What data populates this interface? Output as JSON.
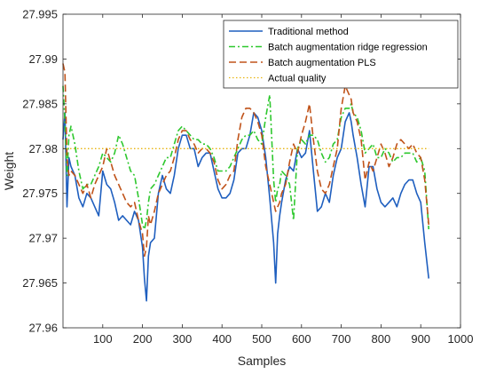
{
  "chart_data": {
    "type": "line",
    "title": "",
    "xlabel": "Samples",
    "ylabel": "Weight",
    "xlim": [
      0,
      1000
    ],
    "ylim": [
      27.96,
      27.995
    ],
    "xticks": [
      100,
      200,
      300,
      400,
      500,
      600,
      700,
      800,
      900,
      1000
    ],
    "xtick_labels": [
      "100",
      "200",
      "300",
      "400",
      "500",
      "600",
      "700",
      "800",
      "900",
      "1000"
    ],
    "yticks": [
      27.96,
      27.965,
      27.97,
      27.975,
      27.98,
      27.985,
      27.99,
      27.995
    ],
    "ytick_labels": [
      "27.96",
      "27.965",
      "27.97",
      "27.975",
      "27.98",
      "27.985",
      "27.99",
      "27.995"
    ],
    "grid": false,
    "legend_position": "top-right",
    "series": [
      {
        "name": "Traditional method",
        "color": "#1f5fbf",
        "style": "solid",
        "x": [
          0,
          5,
          10,
          15,
          20,
          30,
          40,
          50,
          60,
          70,
          80,
          90,
          100,
          110,
          120,
          130,
          140,
          150,
          160,
          170,
          180,
          190,
          200,
          205,
          210,
          215,
          220,
          230,
          240,
          250,
          260,
          270,
          280,
          290,
          300,
          310,
          320,
          330,
          340,
          350,
          360,
          370,
          380,
          390,
          400,
          410,
          420,
          430,
          440,
          450,
          460,
          470,
          480,
          490,
          500,
          510,
          520,
          530,
          535,
          540,
          545,
          550,
          560,
          570,
          580,
          590,
          600,
          610,
          620,
          630,
          640,
          650,
          660,
          670,
          680,
          690,
          700,
          710,
          720,
          725,
          730,
          740,
          750,
          760,
          770,
          780,
          790,
          800,
          810,
          820,
          830,
          840,
          850,
          860,
          870,
          880,
          890,
          900,
          910,
          920
        ],
        "y": [
          27.981,
          27.984,
          27.9735,
          27.979,
          27.978,
          27.977,
          27.9745,
          27.9735,
          27.975,
          27.9745,
          27.9735,
          27.9725,
          27.9775,
          27.976,
          27.9755,
          27.974,
          27.972,
          27.9725,
          27.972,
          27.9715,
          27.973,
          27.972,
          27.969,
          27.9655,
          27.963,
          27.968,
          27.9695,
          27.97,
          27.975,
          27.977,
          27.9755,
          27.975,
          27.977,
          27.98,
          27.9815,
          27.9815,
          27.98,
          27.98,
          27.978,
          27.979,
          27.9795,
          27.9795,
          27.9775,
          27.9755,
          27.9745,
          27.9745,
          27.975,
          27.9765,
          27.9795,
          27.98,
          27.98,
          27.9815,
          27.984,
          27.9835,
          27.982,
          27.979,
          27.9745,
          27.9695,
          27.965,
          27.9705,
          27.9725,
          27.974,
          27.9765,
          27.978,
          27.9775,
          27.98,
          27.979,
          27.9795,
          27.982,
          27.9775,
          27.973,
          27.9735,
          27.975,
          27.974,
          27.977,
          27.979,
          27.98,
          27.983,
          27.984,
          27.983,
          27.9815,
          27.979,
          27.976,
          27.9735,
          27.978,
          27.978,
          27.9755,
          27.974,
          27.9735,
          27.974,
          27.9745,
          27.9735,
          27.975,
          27.976,
          27.9765,
          27.9765,
          27.975,
          27.974,
          27.9695,
          27.9655
        ]
      },
      {
        "name": "Batch augmentation ridge regression",
        "color": "#2ec82e",
        "style": "dashdot",
        "x": [
          0,
          5,
          10,
          15,
          20,
          30,
          40,
          50,
          60,
          70,
          80,
          90,
          100,
          110,
          120,
          130,
          140,
          150,
          160,
          170,
          180,
          190,
          200,
          205,
          210,
          215,
          220,
          230,
          240,
          250,
          260,
          270,
          280,
          290,
          300,
          310,
          320,
          330,
          340,
          350,
          360,
          370,
          380,
          390,
          400,
          410,
          420,
          430,
          440,
          450,
          460,
          470,
          480,
          490,
          500,
          510,
          520,
          530,
          535,
          540,
          545,
          550,
          560,
          570,
          580,
          590,
          600,
          610,
          620,
          630,
          640,
          650,
          660,
          670,
          680,
          690,
          700,
          710,
          720,
          725,
          730,
          740,
          750,
          760,
          770,
          780,
          790,
          800,
          810,
          820,
          830,
          840,
          850,
          860,
          870,
          880,
          890,
          900,
          910,
          920
        ],
        "y": [
          27.987,
          27.983,
          27.977,
          27.9815,
          27.9825,
          27.9805,
          27.9775,
          27.9755,
          27.976,
          27.976,
          27.977,
          27.978,
          27.9795,
          27.979,
          27.9785,
          27.9795,
          27.9815,
          27.9805,
          27.979,
          27.9775,
          27.977,
          27.9745,
          27.9715,
          27.971,
          27.972,
          27.974,
          27.9755,
          27.976,
          27.977,
          27.978,
          27.979,
          27.979,
          27.9805,
          27.982,
          27.9825,
          27.982,
          27.9815,
          27.981,
          27.981,
          27.9805,
          27.9805,
          27.98,
          27.979,
          27.9775,
          27.9775,
          27.9775,
          27.978,
          27.979,
          27.98,
          27.981,
          27.9815,
          27.9815,
          27.982,
          27.981,
          27.9805,
          27.9835,
          27.986,
          27.9765,
          27.974,
          27.9755,
          27.976,
          27.9775,
          27.977,
          27.976,
          27.972,
          27.98,
          27.981,
          27.9805,
          27.9815,
          27.9815,
          27.981,
          27.9795,
          27.9785,
          27.979,
          27.9805,
          27.981,
          27.9835,
          27.9845,
          27.9845,
          27.985,
          27.984,
          27.9835,
          27.982,
          27.9795,
          27.98,
          27.9805,
          27.979,
          27.979,
          27.98,
          27.9795,
          27.9785,
          27.979,
          27.979,
          27.9795,
          27.9795,
          27.9795,
          27.9785,
          27.979,
          27.9775,
          27.971
        ]
      },
      {
        "name": "Batch augmentation PLS",
        "color": "#c0531a",
        "style": "dashed",
        "x": [
          0,
          5,
          10,
          15,
          20,
          30,
          40,
          50,
          60,
          70,
          80,
          90,
          100,
          110,
          120,
          130,
          140,
          150,
          160,
          170,
          180,
          190,
          200,
          205,
          210,
          215,
          220,
          230,
          240,
          250,
          260,
          270,
          280,
          290,
          300,
          310,
          320,
          330,
          340,
          350,
          360,
          370,
          380,
          390,
          400,
          410,
          420,
          430,
          440,
          450,
          460,
          470,
          480,
          490,
          500,
          510,
          520,
          530,
          535,
          540,
          545,
          550,
          560,
          570,
          580,
          590,
          600,
          610,
          620,
          630,
          640,
          650,
          660,
          670,
          680,
          690,
          700,
          710,
          720,
          725,
          730,
          740,
          750,
          760,
          770,
          780,
          790,
          800,
          810,
          820,
          830,
          840,
          850,
          860,
          870,
          880,
          890,
          900,
          910,
          920
        ],
        "y": [
          27.9895,
          27.9885,
          27.979,
          27.977,
          27.9775,
          27.977,
          27.976,
          27.975,
          27.976,
          27.9745,
          27.976,
          27.977,
          27.978,
          27.98,
          27.9785,
          27.977,
          27.976,
          27.975,
          27.974,
          27.9735,
          27.974,
          27.972,
          27.9705,
          27.968,
          27.969,
          27.9725,
          27.9715,
          27.973,
          27.975,
          27.976,
          27.977,
          27.9775,
          27.979,
          27.981,
          27.982,
          27.982,
          27.981,
          27.9805,
          27.9795,
          27.98,
          27.98,
          27.9795,
          27.9785,
          27.9765,
          27.9755,
          27.976,
          27.977,
          27.9775,
          27.981,
          27.9835,
          27.9845,
          27.9845,
          27.984,
          27.983,
          27.9815,
          27.978,
          27.976,
          27.974,
          27.973,
          27.9735,
          27.974,
          27.975,
          27.976,
          27.9785,
          27.9805,
          27.9795,
          27.9815,
          27.983,
          27.985,
          27.981,
          27.9775,
          27.9755,
          27.975,
          27.976,
          27.978,
          27.98,
          27.9845,
          27.987,
          27.986,
          27.9855,
          27.984,
          27.983,
          27.981,
          27.9765,
          27.9785,
          27.9775,
          27.979,
          27.9805,
          27.9795,
          27.978,
          27.979,
          27.9805,
          27.981,
          27.9805,
          27.98,
          27.9805,
          27.9795,
          27.979,
          27.9765,
          27.9715
        ]
      },
      {
        "name": "Actual quality",
        "color": "#e8b410",
        "style": "dotted",
        "x": [
          0,
          920
        ],
        "y": [
          27.98,
          27.98
        ]
      }
    ]
  }
}
